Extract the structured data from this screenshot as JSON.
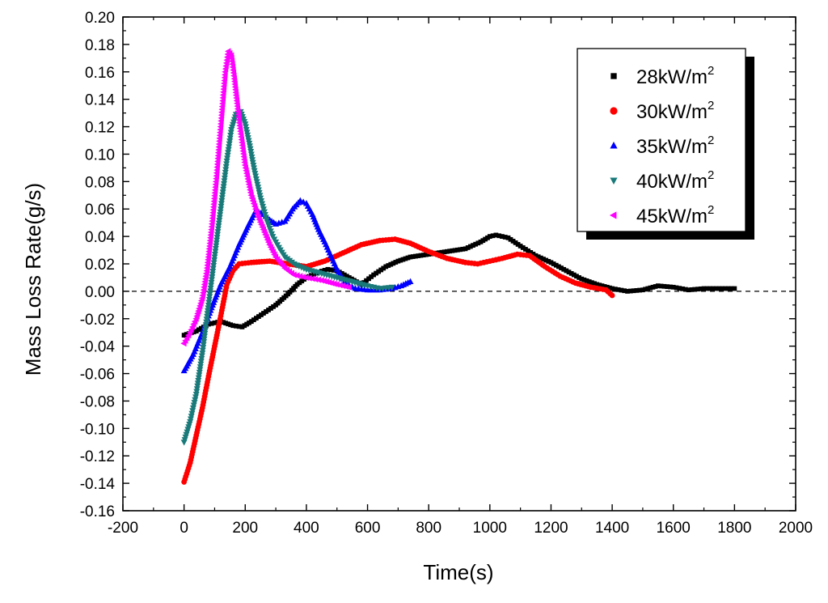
{
  "chart_data": {
    "type": "scatter",
    "title": "",
    "xlabel": "Time(s)",
    "ylabel": "Mass Loss Rate(g/s)",
    "xlim": [
      -200,
      2000
    ],
    "ylim": [
      -0.16,
      0.2
    ],
    "x_ticks": [
      -200,
      0,
      200,
      400,
      600,
      800,
      1000,
      1200,
      1400,
      1600,
      1800,
      2000
    ],
    "x_tick_labels": [
      "-200",
      "0",
      "200",
      "400",
      "600",
      "800",
      "1000",
      "1200",
      "1400",
      "1600",
      "1800",
      "2000"
    ],
    "y_ticks": [
      -0.16,
      -0.14,
      -0.12,
      -0.1,
      -0.08,
      -0.06,
      -0.04,
      -0.02,
      0.0,
      0.02,
      0.04,
      0.06,
      0.08,
      0.1,
      0.12,
      0.14,
      0.16,
      0.18,
      0.2
    ],
    "y_tick_labels": [
      "-0.16",
      "-0.14",
      "-0.12",
      "-0.10",
      "-0.08",
      "-0.06",
      "-0.04",
      "-0.02",
      "0.00",
      "0.02",
      "0.04",
      "0.06",
      "0.08",
      "0.10",
      "0.12",
      "0.14",
      "0.16",
      "0.18",
      "0.20"
    ],
    "reference_line": {
      "y": 0.0,
      "style": "dashed"
    },
    "legend_position": "top-right",
    "legend_superscript": "2",
    "series": [
      {
        "name": "28kW/m",
        "color": "#000000",
        "marker": "square",
        "points": [
          [
            0,
            -0.032
          ],
          [
            40,
            -0.029
          ],
          [
            80,
            -0.024
          ],
          [
            120,
            -0.022
          ],
          [
            160,
            -0.025
          ],
          [
            190,
            -0.026
          ],
          [
            220,
            -0.022
          ],
          [
            260,
            -0.016
          ],
          [
            300,
            -0.01
          ],
          [
            340,
            -0.002
          ],
          [
            370,
            0.005
          ],
          [
            400,
            0.01
          ],
          [
            440,
            0.014
          ],
          [
            470,
            0.016
          ],
          [
            500,
            0.015
          ],
          [
            540,
            0.01
          ],
          [
            580,
            0.005
          ],
          [
            620,
            0.012
          ],
          [
            660,
            0.018
          ],
          [
            700,
            0.022
          ],
          [
            740,
            0.025
          ],
          [
            800,
            0.027
          ],
          [
            860,
            0.029
          ],
          [
            920,
            0.031
          ],
          [
            970,
            0.036
          ],
          [
            1000,
            0.04
          ],
          [
            1020,
            0.041
          ],
          [
            1060,
            0.039
          ],
          [
            1100,
            0.033
          ],
          [
            1150,
            0.026
          ],
          [
            1200,
            0.021
          ],
          [
            1250,
            0.015
          ],
          [
            1300,
            0.009
          ],
          [
            1350,
            0.005
          ],
          [
            1400,
            0.002
          ],
          [
            1450,
            0.0
          ],
          [
            1500,
            0.001
          ],
          [
            1550,
            0.004
          ],
          [
            1600,
            0.003
          ],
          [
            1650,
            0.001
          ],
          [
            1700,
            0.002
          ],
          [
            1750,
            0.002
          ],
          [
            1800,
            0.002
          ]
        ]
      },
      {
        "name": "30kW/m",
        "color": "#ff0000",
        "marker": "circle",
        "points": [
          [
            0,
            -0.139
          ],
          [
            20,
            -0.125
          ],
          [
            40,
            -0.105
          ],
          [
            60,
            -0.085
          ],
          [
            80,
            -0.062
          ],
          [
            100,
            -0.04
          ],
          [
            120,
            -0.018
          ],
          [
            140,
            0.005
          ],
          [
            160,
            0.015
          ],
          [
            180,
            0.02
          ],
          [
            220,
            0.021
          ],
          [
            280,
            0.022
          ],
          [
            340,
            0.02
          ],
          [
            400,
            0.018
          ],
          [
            460,
            0.022
          ],
          [
            520,
            0.028
          ],
          [
            580,
            0.034
          ],
          [
            640,
            0.037
          ],
          [
            690,
            0.038
          ],
          [
            740,
            0.035
          ],
          [
            800,
            0.029
          ],
          [
            860,
            0.024
          ],
          [
            920,
            0.021
          ],
          [
            960,
            0.02
          ],
          [
            1000,
            0.022
          ],
          [
            1040,
            0.024
          ],
          [
            1090,
            0.027
          ],
          [
            1130,
            0.026
          ],
          [
            1180,
            0.018
          ],
          [
            1230,
            0.011
          ],
          [
            1280,
            0.006
          ],
          [
            1330,
            0.003
          ],
          [
            1380,
            0.001
          ],
          [
            1400,
            -0.003
          ]
        ]
      },
      {
        "name": "35kW/m",
        "color": "#0000ff",
        "marker": "triangle-up",
        "points": [
          [
            0,
            -0.058
          ],
          [
            30,
            -0.046
          ],
          [
            60,
            -0.03
          ],
          [
            90,
            -0.012
          ],
          [
            120,
            0.005
          ],
          [
            150,
            0.018
          ],
          [
            180,
            0.034
          ],
          [
            210,
            0.048
          ],
          [
            235,
            0.059
          ],
          [
            260,
            0.056
          ],
          [
            280,
            0.052
          ],
          [
            300,
            0.049
          ],
          [
            330,
            0.051
          ],
          [
            355,
            0.06
          ],
          [
            380,
            0.066
          ],
          [
            400,
            0.064
          ],
          [
            420,
            0.056
          ],
          [
            440,
            0.045
          ],
          [
            460,
            0.036
          ],
          [
            480,
            0.026
          ],
          [
            500,
            0.016
          ],
          [
            520,
            0.009
          ],
          [
            540,
            0.004
          ],
          [
            560,
            0.002
          ],
          [
            600,
            0.001
          ],
          [
            640,
            0.001
          ],
          [
            680,
            0.002
          ],
          [
            710,
            0.004
          ],
          [
            740,
            0.007
          ]
        ]
      },
      {
        "name": "40kW/m",
        "color": "#1a7a7a",
        "marker": "triangle-down",
        "points": [
          [
            0,
            -0.11
          ],
          [
            20,
            -0.095
          ],
          [
            40,
            -0.075
          ],
          [
            60,
            -0.045
          ],
          [
            80,
            -0.01
          ],
          [
            100,
            0.025
          ],
          [
            120,
            0.06
          ],
          [
            140,
            0.095
          ],
          [
            155,
            0.118
          ],
          [
            170,
            0.129
          ],
          [
            185,
            0.131
          ],
          [
            200,
            0.122
          ],
          [
            215,
            0.106
          ],
          [
            230,
            0.088
          ],
          [
            250,
            0.068
          ],
          [
            270,
            0.052
          ],
          [
            290,
            0.04
          ],
          [
            310,
            0.032
          ],
          [
            330,
            0.025
          ],
          [
            360,
            0.02
          ],
          [
            400,
            0.016
          ],
          [
            450,
            0.013
          ],
          [
            500,
            0.01
          ],
          [
            550,
            0.007
          ],
          [
            600,
            0.004
          ],
          [
            640,
            0.002
          ],
          [
            680,
            0.003
          ]
        ]
      },
      {
        "name": "45kW/m",
        "color": "#ff00ff",
        "marker": "triangle-left",
        "points": [
          [
            0,
            -0.038
          ],
          [
            20,
            -0.03
          ],
          [
            40,
            -0.02
          ],
          [
            60,
            -0.005
          ],
          [
            75,
            0.015
          ],
          [
            90,
            0.045
          ],
          [
            105,
            0.08
          ],
          [
            120,
            0.12
          ],
          [
            135,
            0.16
          ],
          [
            145,
            0.175
          ],
          [
            155,
            0.172
          ],
          [
            165,
            0.155
          ],
          [
            180,
            0.125
          ],
          [
            200,
            0.092
          ],
          [
            220,
            0.07
          ],
          [
            240,
            0.056
          ],
          [
            260,
            0.045
          ],
          [
            280,
            0.034
          ],
          [
            300,
            0.025
          ],
          [
            330,
            0.017
          ],
          [
            360,
            0.012
          ],
          [
            400,
            0.01
          ],
          [
            450,
            0.008
          ],
          [
            500,
            0.005
          ],
          [
            540,
            0.003
          ]
        ]
      }
    ]
  }
}
